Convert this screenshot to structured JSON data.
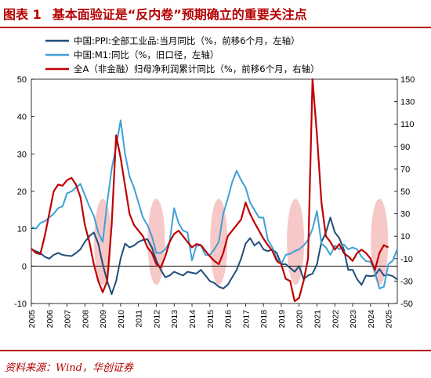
{
  "header": {
    "figure_label": "图表 1",
    "title": "基本面验证是“反内卷”预期确立的重要关注点"
  },
  "footer": {
    "source": "资料来源：Wind，华创证券"
  },
  "colors": {
    "ppi": "#1f4e79",
    "m1": "#3fa0d6",
    "profit": "#c00000",
    "highlight": "#f4b6b6",
    "accent": "#b40000"
  },
  "chart_data": {
    "type": "line",
    "xlabel": "",
    "ylabel_left": "",
    "ylabel_right": "",
    "x_ticks": [
      "2005",
      "2006",
      "2007",
      "2008",
      "2009",
      "2010",
      "2011",
      "2012",
      "2013",
      "2014",
      "2015",
      "2016",
      "2017",
      "2018",
      "2019",
      "2020",
      "2021",
      "2022",
      "2023",
      "2024",
      "2025"
    ],
    "xlim": [
      2005.0,
      2025.5
    ],
    "ylim_left": [
      -10,
      50
    ],
    "yticks_left": [
      "-10",
      "0",
      "10",
      "20",
      "30",
      "40",
      "50"
    ],
    "ylim_right": [
      -50,
      150
    ],
    "yticks_right": [
      "-50",
      "-30",
      "-10",
      "10",
      "30",
      "50",
      "70",
      "90",
      "110",
      "130",
      "150"
    ],
    "legend_position": "top",
    "highlight_periods": [
      2009.0,
      2012.0,
      2015.5,
      2019.8,
      2024.5
    ],
    "series": [
      {
        "name": "中国:PPI:全部工业品:当月同比（%，前移6个月，左轴）",
        "axis": "left",
        "color_key": "ppi",
        "points": [
          [
            2005.0,
            4.5
          ],
          [
            2005.25,
            4.0
          ],
          [
            2005.5,
            3.5
          ],
          [
            2005.75,
            2.5
          ],
          [
            2006.0,
            2.0
          ],
          [
            2006.25,
            3.0
          ],
          [
            2006.5,
            3.5
          ],
          [
            2006.75,
            3.0
          ],
          [
            2007.0,
            2.8
          ],
          [
            2007.25,
            2.7
          ],
          [
            2007.5,
            3.5
          ],
          [
            2007.75,
            4.5
          ],
          [
            2008.0,
            6.5
          ],
          [
            2008.25,
            8.0
          ],
          [
            2008.5,
            9.0
          ],
          [
            2008.75,
            6.0
          ],
          [
            2009.0,
            0.5
          ],
          [
            2009.25,
            -4.0
          ],
          [
            2009.5,
            -7.5
          ],
          [
            2009.75,
            -4.0
          ],
          [
            2010.0,
            2.0
          ],
          [
            2010.25,
            6.0
          ],
          [
            2010.5,
            5.0
          ],
          [
            2010.75,
            5.5
          ],
          [
            2011.0,
            6.5
          ],
          [
            2011.25,
            7.0
          ],
          [
            2011.5,
            7.2
          ],
          [
            2011.75,
            5.0
          ],
          [
            2012.0,
            1.5
          ],
          [
            2012.25,
            -1.0
          ],
          [
            2012.5,
            -3.0
          ],
          [
            2012.75,
            -2.5
          ],
          [
            2013.0,
            -1.5
          ],
          [
            2013.25,
            -2.0
          ],
          [
            2013.5,
            -2.5
          ],
          [
            2013.75,
            -1.5
          ],
          [
            2014.0,
            -1.8
          ],
          [
            2014.25,
            -2.0
          ],
          [
            2014.5,
            -1.0
          ],
          [
            2014.75,
            -2.5
          ],
          [
            2015.0,
            -4.0
          ],
          [
            2015.25,
            -4.5
          ],
          [
            2015.5,
            -5.5
          ],
          [
            2015.75,
            -6.0
          ],
          [
            2016.0,
            -5.0
          ],
          [
            2016.25,
            -3.0
          ],
          [
            2016.5,
            -1.0
          ],
          [
            2016.75,
            2.0
          ],
          [
            2017.0,
            6.0
          ],
          [
            2017.25,
            7.5
          ],
          [
            2017.5,
            5.5
          ],
          [
            2017.75,
            6.5
          ],
          [
            2018.0,
            4.5
          ],
          [
            2018.25,
            4.0
          ],
          [
            2018.5,
            4.5
          ],
          [
            2018.75,
            3.5
          ],
          [
            2019.0,
            0.5
          ],
          [
            2019.25,
            0.5
          ],
          [
            2019.5,
            -0.5
          ],
          [
            2019.75,
            -1.5
          ],
          [
            2020.0,
            0.0
          ],
          [
            2020.25,
            -3.5
          ],
          [
            2020.5,
            -2.5
          ],
          [
            2020.75,
            -2.0
          ],
          [
            2021.0,
            0.5
          ],
          [
            2021.25,
            6.5
          ],
          [
            2021.5,
            9.0
          ],
          [
            2021.75,
            13.0
          ],
          [
            2022.0,
            9.0
          ],
          [
            2022.25,
            7.5
          ],
          [
            2022.5,
            4.5
          ],
          [
            2022.75,
            -1.0
          ],
          [
            2023.0,
            -1.0
          ],
          [
            2023.25,
            -3.5
          ],
          [
            2023.5,
            -5.0
          ],
          [
            2023.75,
            -2.5
          ],
          [
            2024.0,
            -2.7
          ],
          [
            2024.25,
            -2.5
          ],
          [
            2024.5,
            -0.8
          ],
          [
            2024.75,
            -2.5
          ],
          [
            2025.0,
            -2.3
          ],
          [
            2025.25,
            -2.7
          ],
          [
            2025.5,
            -3.6
          ]
        ]
      },
      {
        "name": "中国:M1:同比（%，旧口径，左轴）",
        "axis": "left",
        "color_key": "m1",
        "points": [
          [
            2005.0,
            10.5
          ],
          [
            2005.25,
            10.0
          ],
          [
            2005.5,
            11.5
          ],
          [
            2005.75,
            12.0
          ],
          [
            2006.0,
            13.0
          ],
          [
            2006.25,
            14.0
          ],
          [
            2006.5,
            15.5
          ],
          [
            2006.75,
            16.0
          ],
          [
            2007.0,
            19.5
          ],
          [
            2007.25,
            20.0
          ],
          [
            2007.5,
            21.0
          ],
          [
            2007.75,
            22.0
          ],
          [
            2008.0,
            19.0
          ],
          [
            2008.25,
            16.0
          ],
          [
            2008.5,
            13.5
          ],
          [
            2008.75,
            9.0
          ],
          [
            2009.0,
            6.5
          ],
          [
            2009.25,
            17.0
          ],
          [
            2009.5,
            26.0
          ],
          [
            2009.75,
            32.0
          ],
          [
            2010.0,
            39.0
          ],
          [
            2010.25,
            30.0
          ],
          [
            2010.5,
            24.0
          ],
          [
            2010.75,
            21.0
          ],
          [
            2011.0,
            17.0
          ],
          [
            2011.25,
            13.0
          ],
          [
            2011.5,
            11.0
          ],
          [
            2011.75,
            8.0
          ],
          [
            2012.0,
            3.5
          ],
          [
            2012.25,
            3.5
          ],
          [
            2012.5,
            4.5
          ],
          [
            2012.75,
            6.5
          ],
          [
            2013.0,
            15.5
          ],
          [
            2013.25,
            11.5
          ],
          [
            2013.5,
            9.5
          ],
          [
            2013.75,
            9.0
          ],
          [
            2014.0,
            1.5
          ],
          [
            2014.25,
            5.5
          ],
          [
            2014.5,
            5.5
          ],
          [
            2014.75,
            3.0
          ],
          [
            2015.0,
            3.0
          ],
          [
            2015.25,
            4.5
          ],
          [
            2015.5,
            6.5
          ],
          [
            2015.75,
            14.0
          ],
          [
            2016.0,
            18.0
          ],
          [
            2016.25,
            22.5
          ],
          [
            2016.5,
            25.5
          ],
          [
            2016.75,
            23.0
          ],
          [
            2017.0,
            21.0
          ],
          [
            2017.25,
            17.0
          ],
          [
            2017.5,
            15.0
          ],
          [
            2017.75,
            13.0
          ],
          [
            2018.0,
            13.0
          ],
          [
            2018.25,
            7.0
          ],
          [
            2018.5,
            5.0
          ],
          [
            2018.75,
            2.0
          ],
          [
            2019.0,
            0.5
          ],
          [
            2019.25,
            3.0
          ],
          [
            2019.5,
            3.3
          ],
          [
            2019.75,
            4.0
          ],
          [
            2020.0,
            4.5
          ],
          [
            2020.25,
            5.5
          ],
          [
            2020.5,
            7.0
          ],
          [
            2020.75,
            10.0
          ],
          [
            2021.0,
            14.7
          ],
          [
            2021.25,
            6.0
          ],
          [
            2021.5,
            5.0
          ],
          [
            2021.75,
            3.0
          ],
          [
            2022.0,
            5.5
          ],
          [
            2022.25,
            4.5
          ],
          [
            2022.5,
            5.8
          ],
          [
            2022.75,
            4.5
          ],
          [
            2023.0,
            5.0
          ],
          [
            2023.25,
            4.5
          ],
          [
            2023.5,
            2.5
          ],
          [
            2023.75,
            1.3
          ],
          [
            2024.0,
            1.2
          ],
          [
            2024.25,
            -1.5
          ],
          [
            2024.5,
            -6.0
          ],
          [
            2024.75,
            -5.5
          ],
          [
            2025.0,
            0.5
          ],
          [
            2025.25,
            1.5
          ],
          [
            2025.5,
            4.6
          ]
        ]
      },
      {
        "name": "全A（非金融）归母净利润累计同比（%，前移6个月，右轴）",
        "axis": "right",
        "color_key": "profit",
        "points": [
          [
            2005.0,
            -1.0
          ],
          [
            2005.25,
            -5.0
          ],
          [
            2005.5,
            -6.0
          ],
          [
            2005.75,
            10.0
          ],
          [
            2006.0,
            30.0
          ],
          [
            2006.25,
            50.0
          ],
          [
            2006.5,
            56.0
          ],
          [
            2006.75,
            55.0
          ],
          [
            2007.0,
            60.0
          ],
          [
            2007.25,
            62.0
          ],
          [
            2007.5,
            56.0
          ],
          [
            2007.75,
            45.0
          ],
          [
            2008.0,
            20.0
          ],
          [
            2008.25,
            5.0
          ],
          [
            2008.5,
            -15.0
          ],
          [
            2008.75,
            -30.0
          ],
          [
            2009.0,
            -40.0
          ],
          [
            2009.25,
            -30.0
          ],
          [
            2009.5,
            20.0
          ],
          [
            2009.75,
            100.0
          ],
          [
            2010.0,
            80.0
          ],
          [
            2010.25,
            55.0
          ],
          [
            2010.5,
            30.0
          ],
          [
            2010.75,
            20.0
          ],
          [
            2011.0,
            15.0
          ],
          [
            2011.25,
            10.0
          ],
          [
            2011.5,
            0.0
          ],
          [
            2011.75,
            -5.0
          ],
          [
            2012.0,
            -15.0
          ],
          [
            2012.25,
            -18.0
          ],
          [
            2012.5,
            -8.0
          ],
          [
            2012.75,
            5.0
          ],
          [
            2013.0,
            12.0
          ],
          [
            2013.25,
            15.0
          ],
          [
            2013.5,
            10.0
          ],
          [
            2013.75,
            5.0
          ],
          [
            2014.0,
            0.0
          ],
          [
            2014.25,
            3.0
          ],
          [
            2014.5,
            2.0
          ],
          [
            2014.75,
            -3.0
          ],
          [
            2015.0,
            -8.0
          ],
          [
            2015.25,
            -12.0
          ],
          [
            2015.5,
            -15.0
          ],
          [
            2015.75,
            -5.0
          ],
          [
            2016.0,
            10.0
          ],
          [
            2016.25,
            15.0
          ],
          [
            2016.5,
            20.0
          ],
          [
            2016.75,
            25.0
          ],
          [
            2017.0,
            40.0
          ],
          [
            2017.25,
            30.0
          ],
          [
            2017.5,
            22.0
          ],
          [
            2017.75,
            15.0
          ],
          [
            2018.0,
            8.0
          ],
          [
            2018.25,
            2.0
          ],
          [
            2018.5,
            -3.0
          ],
          [
            2018.75,
            -12.0
          ],
          [
            2019.0,
            -15.0
          ],
          [
            2019.25,
            -28.0
          ],
          [
            2019.5,
            -30.0
          ],
          [
            2019.75,
            -48.0
          ],
          [
            2020.0,
            -45.0
          ],
          [
            2020.25,
            -30.0
          ],
          [
            2020.5,
            -10.0
          ],
          [
            2020.75,
            150.0
          ],
          [
            2021.0,
            100.0
          ],
          [
            2021.25,
            40.0
          ],
          [
            2021.5,
            10.0
          ],
          [
            2021.75,
            5.0
          ],
          [
            2022.0,
            -2.0
          ],
          [
            2022.25,
            3.0
          ],
          [
            2022.5,
            -5.0
          ],
          [
            2022.75,
            -8.0
          ],
          [
            2023.0,
            -12.0
          ],
          [
            2023.25,
            -5.0
          ],
          [
            2023.5,
            -2.0
          ],
          [
            2023.75,
            -5.0
          ],
          [
            2024.0,
            -10.0
          ],
          [
            2024.25,
            -20.0
          ],
          [
            2024.5,
            -5.0
          ],
          [
            2024.75,
            2.0
          ],
          [
            2025.0,
            0.0
          ]
        ]
      }
    ]
  }
}
